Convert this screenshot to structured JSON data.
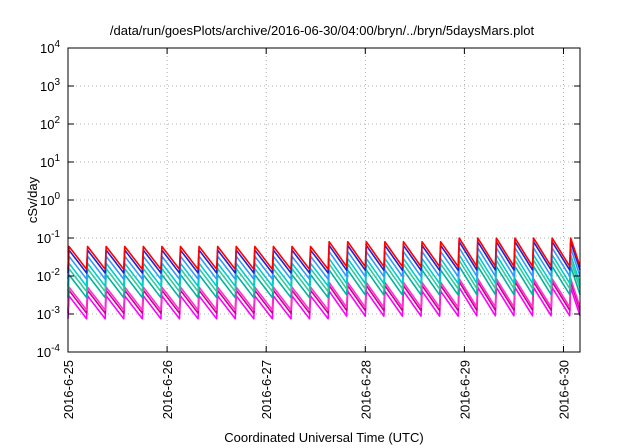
{
  "chart_data": {
    "type": "line",
    "title": "/data/run/goesPlots/archive/2016-06-30/04:00/bryn/../bryn/5daysMars.plot",
    "xlabel": "Coordinated Universal Time (UTC)",
    "ylabel": "cSv/day",
    "y_scale": "log",
    "ylim": [
      0.0001,
      10000
    ],
    "y_ticks": [
      {
        "value": 0.0001,
        "base": "10",
        "exp": "-4"
      },
      {
        "value": 0.001,
        "base": "10",
        "exp": "-3"
      },
      {
        "value": 0.01,
        "base": "10",
        "exp": "-2"
      },
      {
        "value": 0.1,
        "base": "10",
        "exp": "-1"
      },
      {
        "value": 1,
        "base": "10",
        "exp": "0"
      },
      {
        "value": 10,
        "base": "10",
        "exp": "1"
      },
      {
        "value": 100,
        "base": "10",
        "exp": "2"
      },
      {
        "value": 1000,
        "base": "10",
        "exp": "3"
      },
      {
        "value": 10000,
        "base": "10",
        "exp": "4"
      }
    ],
    "x_ticks": [
      "2016-6-25",
      "2016-6-26",
      "2016-6-27",
      "2016-6-28",
      "2016-6-29",
      "2016-6-30"
    ],
    "xlim": [
      "2016-06-25T00:00",
      "2016-06-30T04:00"
    ],
    "grid": true,
    "pattern": {
      "type": "sawtooth",
      "period_hours": 4.5,
      "segments": [
        {
          "start": "2016-06-25T00:00",
          "end": "2016-06-27T14:00",
          "peak": 0.06,
          "dip_ratio": 0.25
        },
        {
          "start": "2016-06-27T14:00",
          "end": "2016-06-28T20:00",
          "peak": 0.08,
          "dip_ratio": 0.22
        },
        {
          "start": "2016-06-28T20:00",
          "end": "2016-06-30T04:00",
          "peak": 0.1,
          "dip_ratio": 0.18
        }
      ]
    },
    "series": [
      {
        "color": "#ff00ff",
        "scale": 0.05
      },
      {
        "color": "#cc0099",
        "scale": 0.07
      },
      {
        "color": "#ff33cc",
        "scale": 0.085
      },
      {
        "color": "#00b3a0",
        "scale": 0.18
      },
      {
        "color": "#33cc99",
        "scale": 0.26
      },
      {
        "color": "#00cccc",
        "scale": 0.36
      },
      {
        "color": "#3399ff",
        "scale": 0.55
      },
      {
        "color": "#2222cc",
        "scale": 0.8
      },
      {
        "color": "#ff0000",
        "scale": 1.0
      }
    ]
  }
}
